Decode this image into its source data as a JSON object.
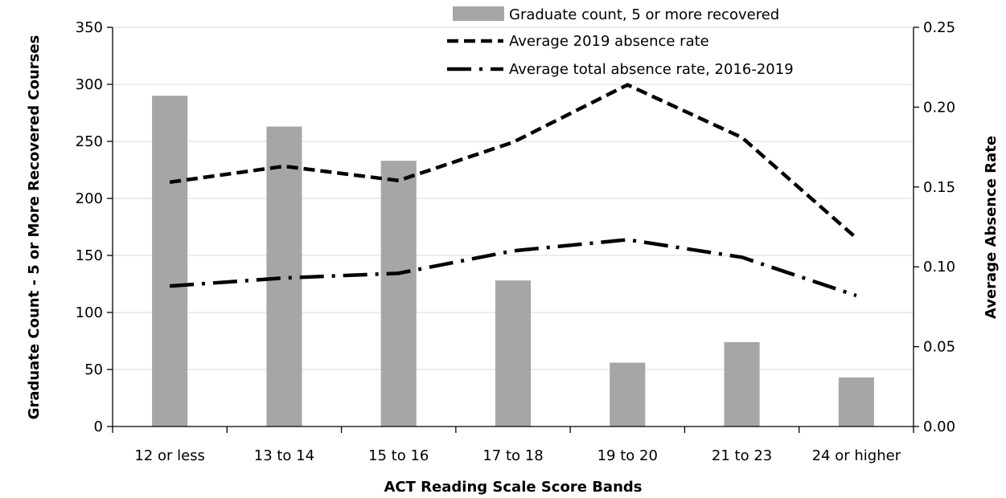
{
  "chart_data": {
    "type": "bar",
    "title": "",
    "categories": [
      "12 or less",
      "13 to 14",
      "15 to 16",
      "17 to 18",
      "19 to 20",
      "21 to 23",
      "24 or higher"
    ],
    "xlabel": "ACT Reading Scale Score Bands",
    "ylabel": "Graduate Count - 5 or More Recovered Courses",
    "y2label": "Average Absence Rate",
    "ylim": [
      0,
      350
    ],
    "y2lim": [
      0,
      0.25
    ],
    "yticks": [
      "0",
      "50",
      "100",
      "150",
      "200",
      "250",
      "300",
      "350"
    ],
    "y2ticks": [
      "0.00",
      "0.05",
      "0.10",
      "0.15",
      "0.20",
      "0.25"
    ],
    "grid": true,
    "legend_position": "top-right",
    "series": [
      {
        "name": "Graduate count, 5 or more recovered",
        "type": "bar",
        "axis": "left",
        "color": "#a6a6a6",
        "values": [
          290,
          263,
          233,
          128,
          56,
          74,
          43
        ]
      },
      {
        "name": "Average 2019 absence rate",
        "type": "line",
        "axis": "right",
        "style": "dashed",
        "color": "#000000",
        "values": [
          0.153,
          0.163,
          0.154,
          0.178,
          0.214,
          0.181,
          0.118
        ]
      },
      {
        "name": "Average total absence rate, 2016-2019",
        "type": "line",
        "axis": "right",
        "style": "dash-dot",
        "color": "#000000",
        "values": [
          0.088,
          0.093,
          0.096,
          0.11,
          0.117,
          0.106,
          0.082
        ]
      }
    ]
  }
}
